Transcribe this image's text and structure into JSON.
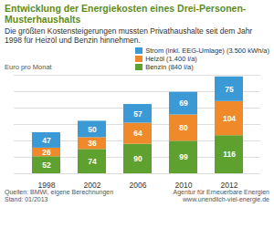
{
  "chart_data": {
    "type": "bar",
    "title": "Entwicklung der Energiekosten eines Drei-Personen-Musterhaushalts",
    "subtitle": "Die größten Kostensteigerungen mussten Privathaushalte seit dem Jahr 1998 für Heizöl und Benzin hinnehmen.",
    "y_label": "Euro pro Monat",
    "categories": [
      "1998",
      "2002",
      "2006",
      "2010",
      "2012"
    ],
    "series": [
      {
        "name": "Strom (inkl. EEG-Umlage) (3.500 kWh/a)",
        "color": "#3b9ad6",
        "values": [
          47,
          50,
          57,
          69,
          75
        ]
      },
      {
        "name": "Heizöl (1.400 l/a)",
        "color": "#f0892a",
        "values": [
          26,
          36,
          64,
          80,
          104
        ]
      },
      {
        "name": "Benzin (840 l/a)",
        "color": "#5ea12e",
        "values": [
          52,
          74,
          90,
          99,
          116
        ]
      }
    ],
    "ylim": [
      0,
      300
    ],
    "yticks": [
      0,
      50,
      100,
      150,
      200,
      250,
      300
    ],
    "grid": true,
    "stacked": true,
    "data_labels": true,
    "tick_labels": "x",
    "legend": "top-right",
    "source": "Quellen: BMWi, eigene Berechnungen",
    "date": "Stand: 01/2013",
    "url": "www.unendlich-viel-energie.de",
    "logo": "Agentur für Erneuerbare Energien"
  }
}
